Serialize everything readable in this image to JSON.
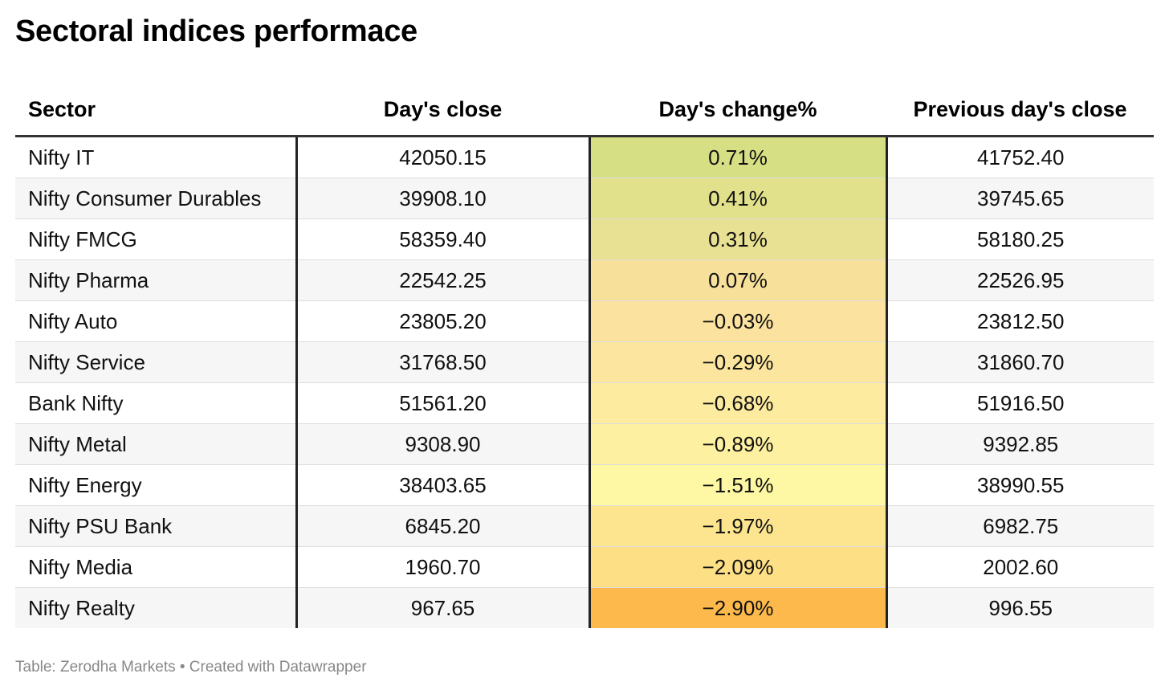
{
  "title": "Sectoral indices performace",
  "footer": "Table: Zerodha Markets • Created with Datawrapper",
  "chart_data": {
    "type": "table",
    "columns": [
      "Sector",
      "Day's close",
      "Day's change%",
      "Previous day's close"
    ],
    "rows": [
      {
        "sector": "Nifty IT",
        "close": "42050.15",
        "change": "0.71%",
        "prev": "41752.40",
        "change_value": 0.71,
        "color": "#d6df84"
      },
      {
        "sector": "Nifty Consumer Durables",
        "close": "39908.10",
        "change": "0.41%",
        "prev": "39745.65",
        "change_value": 0.41,
        "color": "#e1e08b"
      },
      {
        "sector": "Nifty FMCG",
        "close": "58359.40",
        "change": "0.31%",
        "prev": "58180.25",
        "change_value": 0.31,
        "color": "#e8e092"
      },
      {
        "sector": "Nifty Pharma",
        "close": "22542.25",
        "change": "0.07%",
        "prev": "22526.95",
        "change_value": 0.07,
        "color": "#f7e09a"
      },
      {
        "sector": "Nifty Auto",
        "close": "23805.20",
        "change": "−0.03%",
        "prev": "23812.50",
        "change_value": -0.03,
        "color": "#fbe29e"
      },
      {
        "sector": "Nifty Service",
        "close": "31768.50",
        "change": "−0.29%",
        "prev": "31860.70",
        "change_value": -0.29,
        "color": "#fce69f"
      },
      {
        "sector": "Bank Nifty",
        "close": "51561.20",
        "change": "−0.68%",
        "prev": "51916.50",
        "change_value": -0.68,
        "color": "#fdeba0"
      },
      {
        "sector": "Nifty Metal",
        "close": "9308.90",
        "change": "−0.89%",
        "prev": "9392.85",
        "change_value": -0.89,
        "color": "#fdf1a1"
      },
      {
        "sector": "Nifty Energy",
        "close": "38403.65",
        "change": "−1.51%",
        "prev": "38990.55",
        "change_value": -1.51,
        "color": "#fef7a3"
      },
      {
        "sector": "Nifty PSU Bank",
        "close": "6845.20",
        "change": "−1.97%",
        "prev": "6982.75",
        "change_value": -1.97,
        "color": "#fde58f"
      },
      {
        "sector": "Nifty Media",
        "close": "1960.70",
        "change": "−2.09%",
        "prev": "2002.60",
        "change_value": -2.09,
        "color": "#fddf86"
      },
      {
        "sector": "Nifty Realty",
        "close": "967.65",
        "change": "−2.90%",
        "prev": "996.55",
        "change_value": -2.9,
        "color": "#fdb94b"
      }
    ]
  }
}
